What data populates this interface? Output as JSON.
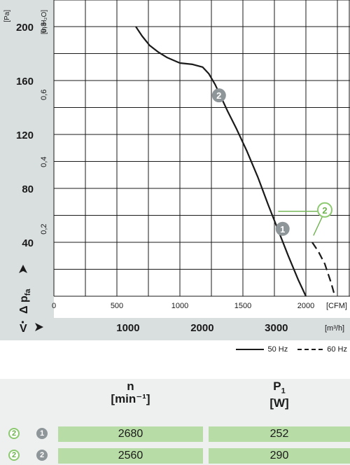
{
  "chart_data": {
    "type": "line",
    "y_axis_pa": {
      "label": "[Pa]",
      "ticks": [
        "200",
        "160",
        "120",
        "80",
        "40"
      ],
      "range": [
        0,
        200
      ]
    },
    "y_axis_inh2o": {
      "label": "[in H₂O]",
      "ticks": [
        "0,8",
        "0,6",
        "0,4",
        "0,2"
      ]
    },
    "x_axis_cfm": {
      "label": "[CFM]",
      "ticks": [
        "0",
        "500",
        "1000",
        "1500",
        "2000"
      ],
      "range": [
        0,
        2350
      ]
    },
    "x_axis_m3h": {
      "label": "[m³/h]",
      "ticks": [
        "1000",
        "2000",
        "3000"
      ]
    },
    "dp_label": "Δ p",
    "dp_sub": "fa",
    "v_label": "V",
    "series": [
      {
        "name": "50 Hz",
        "style": "solid",
        "x": [
          650,
          700,
          760,
          830,
          900,
          1000,
          1100,
          1180,
          1230,
          1280,
          1330,
          1380,
          1450,
          1530,
          1620,
          1700,
          1780,
          1860,
          1940,
          2000
        ],
        "y": [
          200,
          193,
          186,
          181,
          177,
          173,
          172,
          170,
          165,
          157,
          147,
          137,
          124,
          108,
          88,
          68,
          49,
          30,
          12,
          0
        ]
      },
      {
        "name": "60 Hz",
        "style": "dashed",
        "x": [
          2050,
          2100,
          2150,
          2200,
          2230
        ],
        "y": [
          40,
          33,
          24,
          10,
          0
        ]
      }
    ],
    "markers": [
      {
        "id": "1",
        "style": "grey",
        "x": 1815,
        "y": 50
      },
      {
        "id": "2",
        "style": "grey",
        "x": 1310,
        "y": 149
      },
      {
        "id": "2",
        "style": "green-outline",
        "x": 2150,
        "y": 64
      }
    ],
    "callout_lines": [
      {
        "x1": 1780,
        "y1": 63,
        "x2": 2120,
        "y2": 63
      },
      {
        "x1": 2135,
        "y1": 60,
        "x2": 2060,
        "y2": 45
      }
    ]
  },
  "legend": [
    {
      "label": "50 Hz",
      "style": "solid"
    },
    {
      "label": "60 Hz",
      "style": "dashed"
    }
  ],
  "table": {
    "col1": {
      "symbol": "n",
      "unit": "[min⁻¹]"
    },
    "col2": {
      "symbol": "P",
      "symbol_sub": "1",
      "unit": "[W]"
    },
    "rows": [
      {
        "marker_green": "2",
        "marker_grey": "1",
        "n": "2680",
        "p1": "252"
      },
      {
        "marker_green": "2",
        "marker_grey": "2",
        "n": "2560",
        "p1": "290"
      }
    ]
  },
  "colors": {
    "band": "#d9dedf",
    "grid": "#1a1a1a",
    "curve": "#1a1a1a",
    "marker_grey": "#8e9699",
    "marker_green": "#8cc96f",
    "cell": "#b7dca5"
  }
}
